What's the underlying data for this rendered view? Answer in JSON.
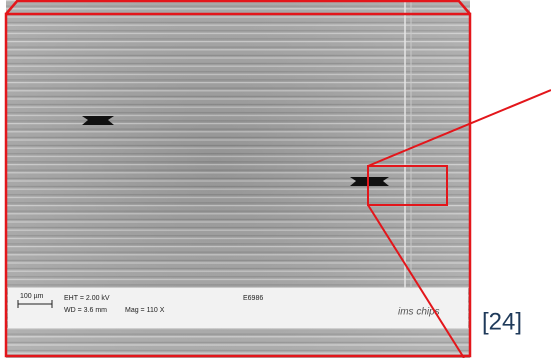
{
  "image": {
    "scale_bar": "100 µm",
    "eht": "EHT = 2.00 kV",
    "wd": "WD = 3.6 mm",
    "mag": "Mag = 110 X",
    "sample_id": "E6986",
    "logo": "ims chips"
  },
  "citation": "[24]"
}
